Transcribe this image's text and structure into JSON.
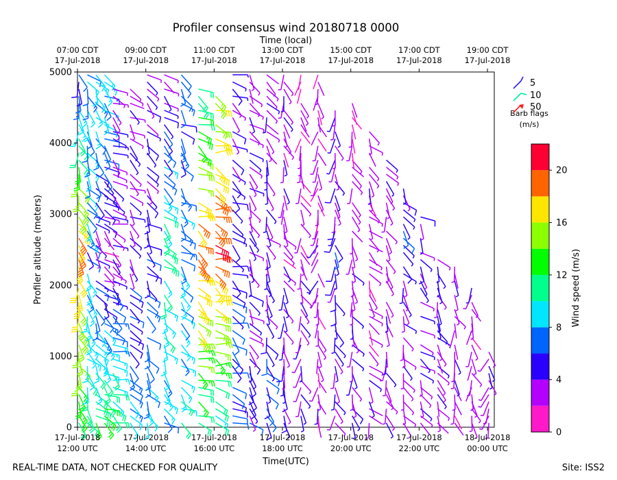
{
  "chart_data": {
    "type": "wind-barb-profile",
    "title": "Profiler consensus wind 20180718 0000",
    "xlabel_bottom": "Time(UTC)",
    "xlabel_top": "Time (local)",
    "ylabel": "Profiler altitude (meters)",
    "ylim": [
      0,
      5000
    ],
    "yticks": [
      0,
      1000,
      2000,
      3000,
      4000,
      5000
    ],
    "xlim_hours_utc": [
      12,
      24.2
    ],
    "bottom_ticks": [
      {
        "hour": 12,
        "line1": "17-Jul-2018",
        "line2": "12:00 UTC"
      },
      {
        "hour": 14,
        "line1": "17-Jul-2018",
        "line2": "14:00 UTC"
      },
      {
        "hour": 16,
        "line1": "17-Jul-2018",
        "line2": "16:00 UTC"
      },
      {
        "hour": 18,
        "line1": "17-Jul-2018",
        "line2": "18:00 UTC"
      },
      {
        "hour": 20,
        "line1": "17-Jul-2018",
        "line2": "20:00 UTC"
      },
      {
        "hour": 22,
        "line1": "17-Jul-2018",
        "line2": "22:00 UTC"
      },
      {
        "hour": 24,
        "line1": "18-Jul-2018",
        "line2": "00:00 UTC"
      }
    ],
    "top_ticks": [
      {
        "hour": 12,
        "line1": "07:00 CDT",
        "line2": "17-Jul-2018"
      },
      {
        "hour": 14,
        "line1": "09:00 CDT",
        "line2": "17-Jul-2018"
      },
      {
        "hour": 16,
        "line1": "11:00 CDT",
        "line2": "17-Jul-2018"
      },
      {
        "hour": 18,
        "line1": "13:00 CDT",
        "line2": "17-Jul-2018"
      },
      {
        "hour": 20,
        "line1": "15:00 CDT",
        "line2": "17-Jul-2018"
      },
      {
        "hour": 22,
        "line1": "17:00 CDT",
        "line2": "17-Jul-2018"
      },
      {
        "hour": 24,
        "line1": "19:00 CDT",
        "line2": "17-Jul-2018"
      }
    ],
    "barb_legend": {
      "items": [
        {
          "label": "5",
          "color": "#2a1ae6"
        },
        {
          "label": "10",
          "color": "#00e8a0"
        },
        {
          "label": "50",
          "color": "#ff1a1a"
        }
      ],
      "title_line1": "Barb flags",
      "title_line2": "(m/s)"
    },
    "colorbar": {
      "label": "Wind speed (m/s)",
      "min": 0,
      "max": 22,
      "ticks": [
        0,
        4,
        8,
        12,
        16,
        20
      ],
      "bands": [
        {
          "from": 0,
          "to": 2,
          "color": "#ff19c8"
        },
        {
          "from": 2,
          "to": 4,
          "color": "#b400ff"
        },
        {
          "from": 4,
          "to": 6,
          "color": "#2a00ff"
        },
        {
          "from": 6,
          "to": 8,
          "color": "#0064ff"
        },
        {
          "from": 8,
          "to": 10,
          "color": "#00e6ff"
        },
        {
          "from": 10,
          "to": 12,
          "color": "#00ff8c"
        },
        {
          "from": 12,
          "to": 14,
          "color": "#00ff00"
        },
        {
          "from": 14,
          "to": 16,
          "color": "#8cff00"
        },
        {
          "from": 16,
          "to": 18,
          "color": "#ffe600"
        },
        {
          "from": 18,
          "to": 20,
          "color": "#ff6400"
        },
        {
          "from": 20,
          "to": 22,
          "color": "#ff0033"
        }
      ]
    },
    "profile_times_utc": [
      12.0,
      12.25,
      12.5,
      12.75,
      13.0,
      13.25,
      13.5,
      13.75,
      14.0,
      14.25,
      14.5,
      14.75,
      15.0,
      15.25,
      15.5,
      15.75,
      16.0,
      16.25,
      16.5,
      16.75,
      17.0,
      17.25,
      17.5,
      17.75,
      18.0,
      18.25,
      18.5,
      18.75,
      19.0,
      19.25,
      19.5,
      19.75,
      20.0,
      20.25,
      20.5,
      20.75,
      21.0,
      21.25,
      21.5,
      21.75,
      22.0,
      22.25,
      22.5,
      22.75,
      23.0,
      23.25,
      23.5,
      23.75,
      24.0
    ],
    "profiles": [
      {
        "t": 12.0,
        "z_range": [
          0,
          5000
        ],
        "speed_low": 12,
        "speed_mid": 19,
        "speed_high": 5,
        "dir_deg": 200
      },
      {
        "t": 12.25,
        "z_range": [
          0,
          5000
        ],
        "speed_low": 11,
        "speed_mid": 7,
        "speed_high": 8,
        "dir_deg": 210
      },
      {
        "t": 12.5,
        "z_range": [
          0,
          5000
        ],
        "speed_low": 12,
        "speed_mid": 4,
        "speed_high": 9,
        "dir_deg": 220
      },
      {
        "t": 12.75,
        "z_range": [
          0,
          5000
        ],
        "speed_low": 13,
        "speed_mid": 3,
        "speed_high": 9,
        "dir_deg": 230
      },
      {
        "t": 13.0,
        "z_range": [
          0,
          4900
        ],
        "speed_low": 12,
        "speed_mid": 3,
        "speed_high": 4,
        "dir_deg": 240
      },
      {
        "t": 13.5,
        "z_range": [
          0,
          4800
        ],
        "speed_low": 9,
        "speed_mid": 4,
        "speed_high": 3,
        "dir_deg": 230
      },
      {
        "t": 14.0,
        "z_range": [
          0,
          5000
        ],
        "speed_low": 9,
        "speed_mid": 5,
        "speed_high": 4,
        "dir_deg": 220
      },
      {
        "t": 14.5,
        "z_range": [
          0,
          5000
        ],
        "speed_low": 8,
        "speed_mid": 11,
        "speed_high": 3,
        "dir_deg": 220
      },
      {
        "t": 15.0,
        "z_range": [
          0,
          5000
        ],
        "speed_low": 10,
        "speed_mid": 7,
        "speed_high": 7,
        "dir_deg": 230
      },
      {
        "t": 15.5,
        "z_range": [
          0,
          4900
        ],
        "speed_low": 11,
        "speed_mid": 19,
        "speed_high": 9,
        "dir_deg": 240
      },
      {
        "t": 16.0,
        "z_range": [
          0,
          4700
        ],
        "speed_low": 9,
        "speed_mid": 20,
        "speed_high": 14,
        "dir_deg": 250
      },
      {
        "t": 16.5,
        "z_range": [
          0,
          5000
        ],
        "speed_low": 7,
        "speed_mid": 5,
        "speed_high": 4,
        "dir_deg": 240
      },
      {
        "t": 17.0,
        "z_range": [
          0,
          5000
        ],
        "speed_low": 5,
        "speed_mid": 4,
        "speed_high": 3,
        "dir_deg": 220
      },
      {
        "t": 17.5,
        "z_range": [
          0,
          5000
        ],
        "speed_low": 6,
        "speed_mid": 4,
        "speed_high": 3,
        "dir_deg": 210
      },
      {
        "t": 18.0,
        "z_range": [
          0,
          5000
        ],
        "speed_low": 5,
        "speed_mid": 3,
        "speed_high": 3,
        "dir_deg": 200
      },
      {
        "t": 18.5,
        "z_range": [
          0,
          5000
        ],
        "speed_low": 4,
        "speed_mid": 3,
        "speed_high": 2,
        "dir_deg": 190
      },
      {
        "t": 19.0,
        "z_range": [
          0,
          5000
        ],
        "speed_low": 3,
        "speed_mid": 3,
        "speed_high": 2,
        "dir_deg": 180
      },
      {
        "t": 19.5,
        "z_range": [
          0,
          4500
        ],
        "speed_low": 3,
        "speed_mid": 5,
        "speed_high": 3,
        "dir_deg": 190
      },
      {
        "t": 20.0,
        "z_range": [
          0,
          4600
        ],
        "speed_low": 4,
        "speed_mid": 3,
        "speed_high": 2,
        "dir_deg": 200
      },
      {
        "t": 20.5,
        "z_range": [
          0,
          4200
        ],
        "speed_low": 3,
        "speed_mid": 3,
        "speed_high": 3,
        "dir_deg": 210
      },
      {
        "t": 21.0,
        "z_range": [
          0,
          3800
        ],
        "speed_low": 3,
        "speed_mid": 4,
        "speed_high": 3,
        "dir_deg": 200
      },
      {
        "t": 21.5,
        "z_range": [
          0,
          3400
        ],
        "speed_low": 3,
        "speed_mid": 5,
        "speed_high": 4,
        "dir_deg": 210
      },
      {
        "t": 22.0,
        "z_range": [
          0,
          3000
        ],
        "speed_low": 3,
        "speed_mid": 5,
        "speed_high": 3,
        "dir_deg": 220
      },
      {
        "t": 22.5,
        "z_range": [
          0,
          2400
        ],
        "speed_low": 3,
        "speed_mid": 4,
        "speed_high": 3,
        "dir_deg": 210
      },
      {
        "t": 23.0,
        "z_range": [
          0,
          2300
        ],
        "speed_low": 3,
        "speed_mid": 3,
        "speed_high": 3,
        "dir_deg": 200
      },
      {
        "t": 23.5,
        "z_range": [
          0,
          2000
        ],
        "speed_low": 3,
        "speed_mid": 3,
        "speed_high": 3,
        "dir_deg": 190
      },
      {
        "t": 24.0,
        "z_range": [
          0,
          1200
        ],
        "speed_low": 3,
        "speed_mid": 3,
        "speed_high": 3,
        "dir_deg": 180
      }
    ]
  },
  "footer": {
    "left_note": "REAL-TIME DATA, NOT CHECKED FOR QUALITY",
    "site": "Site: ISS2"
  }
}
